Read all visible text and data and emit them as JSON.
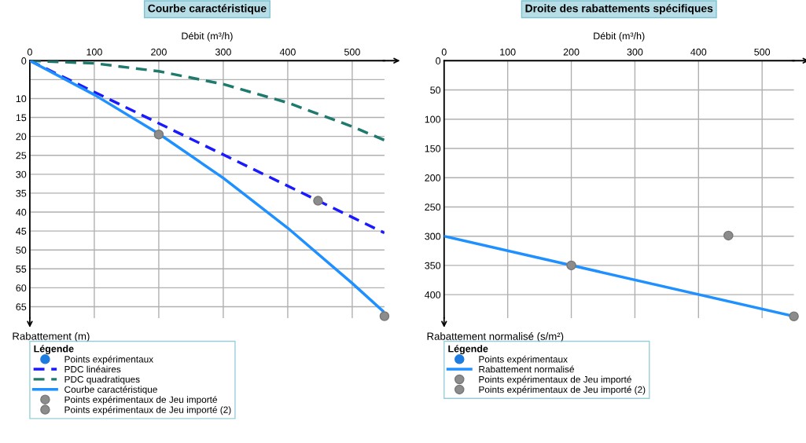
{
  "chart_data": [
    {
      "type": "line",
      "title": "Courbe caractéristique",
      "xlabel": "Débit (m³/h)",
      "ylabel": "Rabattement (m)",
      "legend_title": "Légende",
      "legend": "bottom",
      "grid": true,
      "xlim": [
        0,
        550
      ],
      "ylim": [
        68,
        0
      ],
      "xticks": [
        0,
        100,
        200,
        300,
        400,
        500
      ],
      "yticks": [
        0,
        {
          "value": 5,
          "label": null
        },
        10,
        15,
        20,
        25,
        30,
        35,
        40,
        45,
        50,
        55,
        60,
        65
      ],
      "series": [
        {
          "name": "Points expérimentaux",
          "type": "scatter",
          "marker": "circle",
          "color": "#1e7be0"
        },
        {
          "name": "PDC linéaires",
          "line_style": "dashed",
          "color": "#1a1aff",
          "x": [
            0,
            550
          ],
          "values": [
            0,
            45.5
          ]
        },
        {
          "name": "PDC quadratiques",
          "line_style": "dashed",
          "color": "#1f7a6e",
          "x": [
            0,
            100,
            200,
            300,
            400,
            500,
            550
          ],
          "values": [
            0,
            0.7,
            2.8,
            6.2,
            11.1,
            17.4,
            21
          ]
        },
        {
          "name": "Courbe caractéristique",
          "line_style": "solid",
          "color": "#1e90ff",
          "x": [
            0,
            100,
            200,
            300,
            400,
            500,
            550
          ],
          "values": [
            0,
            9,
            19.3,
            31,
            44.2,
            58.8,
            66.5
          ]
        },
        {
          "name": "Points expérimentaux de Jeu importé",
          "type": "scatter",
          "marker": "circle",
          "color": "#8c8c8c",
          "x": [
            200,
            447,
            550
          ],
          "values": [
            19.5,
            37,
            67.5
          ]
        },
        {
          "name": "Points expérimentaux de Jeu importé (2)",
          "type": "scatter",
          "marker": "circle",
          "color": "#8c8c8c"
        }
      ]
    },
    {
      "type": "line",
      "title": "Droite des rabattements spécifiques",
      "xlabel": "Débit (m³/h)",
      "ylabel": "Rabattement normalisé (s/m²)",
      "legend_title": "Légende",
      "legend": "bottom",
      "grid": true,
      "xlim": [
        0,
        550
      ],
      "ylim": [
        440,
        0
      ],
      "xticks": [
        0,
        100,
        200,
        300,
        400,
        500
      ],
      "yticks": [
        0,
        50,
        100,
        150,
        200,
        250,
        300,
        350,
        400
      ],
      "series": [
        {
          "name": "Points expérimentaux",
          "type": "scatter",
          "marker": "circle",
          "color": "#1e7be0"
        },
        {
          "name": "Rabattement normalisé",
          "line_style": "solid",
          "color": "#1e90ff",
          "x": [
            0,
            550
          ],
          "values": [
            300,
            437
          ]
        },
        {
          "name": "Points expérimentaux de Jeu importé",
          "type": "scatter",
          "marker": "circle",
          "color": "#8c8c8c",
          "x": [
            200,
            447,
            550
          ],
          "values": [
            350,
            299,
            437
          ]
        },
        {
          "name": "Points expérimentaux de Jeu importé (2)",
          "type": "scatter",
          "marker": "circle",
          "color": "#8c8c8c"
        }
      ]
    }
  ]
}
